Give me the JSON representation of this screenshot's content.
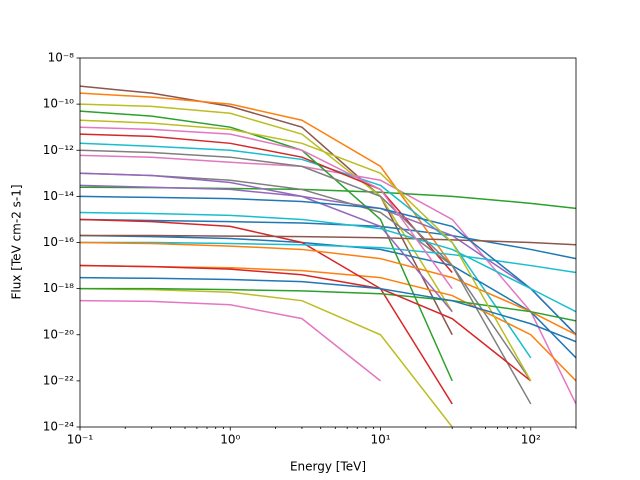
{
  "chart_data": {
    "type": "line",
    "xlabel": "Energy [TeV]",
    "ylabel": "Flux [TeV cm-2 s-1]",
    "xscale": "log",
    "yscale": "log",
    "xlim": [
      0.1,
      200
    ],
    "ylim": [
      1e-24,
      1e-08
    ],
    "xticks": [
      {
        "value": 0.1,
        "label": "10⁻¹"
      },
      {
        "value": 1,
        "label": "10⁰"
      },
      {
        "value": 10,
        "label": "10¹"
      },
      {
        "value": 100,
        "label": "10²"
      }
    ],
    "xminorticks": [
      0.2,
      0.3,
      0.4,
      0.5,
      0.6,
      0.7,
      0.8,
      0.9,
      2,
      3,
      4,
      5,
      6,
      7,
      8,
      9,
      20,
      30,
      40,
      50,
      60,
      70,
      80,
      90,
      200
    ],
    "yticks": [
      {
        "value": 1e-24,
        "label": "10⁻²⁴"
      },
      {
        "value": 1e-22,
        "label": "10⁻²²"
      },
      {
        "value": 1e-20,
        "label": "10⁻²⁰"
      },
      {
        "value": 1e-18,
        "label": "10⁻¹⁸"
      },
      {
        "value": 1e-16,
        "label": "10⁻¹⁶"
      },
      {
        "value": 1e-14,
        "label": "10⁻¹⁴"
      },
      {
        "value": 1e-12,
        "label": "10⁻¹²"
      },
      {
        "value": 1e-10,
        "label": "10⁻¹⁰"
      },
      {
        "value": 1e-08,
        "label": "10⁻⁸"
      }
    ],
    "x": [
      0.1,
      0.3,
      1,
      3,
      10,
      30,
      100,
      200
    ],
    "series": [
      {
        "color": "#8c564b",
        "values": [
          6e-10,
          3e-10,
          8e-11,
          1e-11,
          1e-14,
          1e-20,
          null,
          null
        ]
      },
      {
        "color": "#e377c2",
        "values": [
          6e-13,
          5e-13,
          3e-13,
          2e-13,
          5e-14,
          1e-15,
          1e-19,
          1e-23
        ]
      },
      {
        "color": "#2ca02c",
        "values": [
          2.5e-14,
          2.4e-14,
          2.2e-14,
          2e-14,
          1.5e-14,
          1e-14,
          5e-15,
          3e-15
        ]
      },
      {
        "color": "#1f77b4",
        "values": [
          1e-15,
          9e-16,
          8e-16,
          7e-16,
          5e-16,
          2e-16,
          5e-17,
          2e-17
        ]
      },
      {
        "color": "#ff7f0e",
        "values": [
          3e-10,
          2e-10,
          1e-10,
          2e-11,
          2e-13,
          1e-17,
          null,
          null
        ]
      },
      {
        "color": "#bcbd22",
        "values": [
          1e-10,
          8e-11,
          4e-11,
          5e-12,
          1e-14,
          1e-19,
          null,
          null
        ]
      },
      {
        "color": "#17becf",
        "values": [
          2e-12,
          1.5e-12,
          1e-12,
          4e-13,
          3e-14,
          1e-16,
          1e-21,
          null
        ]
      },
      {
        "color": "#d62728",
        "values": [
          5e-12,
          4e-12,
          2e-12,
          5e-13,
          2e-14,
          5e-18,
          null,
          null
        ]
      },
      {
        "color": "#9467bd",
        "values": [
          3e-14,
          2.5e-14,
          2e-14,
          1e-14,
          3e-15,
          2e-16,
          1e-18,
          1e-20
        ]
      },
      {
        "color": "#7f7f7f",
        "values": [
          1e-13,
          8e-14,
          5e-14,
          2e-14,
          2e-15,
          1e-17,
          1e-22,
          null
        ]
      },
      {
        "color": "#1f77b4",
        "values": [
          2e-16,
          1.8e-16,
          1.5e-16,
          1e-16,
          5e-17,
          1e-17,
          1e-19,
          1e-21
        ]
      },
      {
        "color": "#ff7f0e",
        "values": [
          1e-17,
          9e-18,
          8e-18,
          6e-18,
          3e-18,
          5e-19,
          1e-20,
          1e-22
        ]
      },
      {
        "color": "#2ca02c",
        "values": [
          5e-11,
          3e-11,
          1e-11,
          1e-12,
          1e-15,
          1e-22,
          null,
          null
        ]
      },
      {
        "color": "#d62728",
        "values": [
          1e-15,
          8e-16,
          5e-16,
          1e-16,
          1e-18,
          1e-23,
          null,
          null
        ]
      },
      {
        "color": "#bcbd22",
        "values": [
          1e-18,
          9e-19,
          7e-19,
          3e-19,
          1e-20,
          1e-24,
          null,
          null
        ]
      },
      {
        "color": "#e377c2",
        "values": [
          3e-19,
          2.8e-19,
          2e-19,
          5e-20,
          1e-22,
          null,
          null,
          null
        ]
      },
      {
        "color": "#17becf",
        "values": [
          1e-16,
          1e-16,
          9e-17,
          8e-17,
          6e-17,
          3e-17,
          1e-17,
          5e-18
        ]
      },
      {
        "color": "#8c564b",
        "values": [
          2e-16,
          2e-16,
          1.9e-16,
          1.8e-16,
          1.6e-16,
          1.3e-16,
          1e-16,
          8e-17
        ]
      },
      {
        "color": "#9467bd",
        "values": [
          1e-13,
          8e-14,
          4e-14,
          1e-14,
          5e-16,
          1e-19,
          null,
          null
        ]
      },
      {
        "color": "#1f77b4",
        "values": [
          1e-14,
          9e-15,
          8e-15,
          6e-15,
          3e-15,
          5e-16,
          1e-18,
          1e-20
        ]
      },
      {
        "color": "#ff7f0e",
        "values": [
          1e-16,
          9e-17,
          7e-17,
          5e-17,
          2e-17,
          3e-18,
          1e-19,
          1e-20
        ]
      },
      {
        "color": "#2ca02c",
        "values": [
          1e-18,
          1e-18,
          9e-19,
          8e-19,
          6e-19,
          3e-19,
          1e-19,
          4e-20
        ]
      },
      {
        "color": "#7f7f7f",
        "values": [
          1e-12,
          8e-13,
          5e-13,
          2e-13,
          1e-14,
          1e-17,
          1e-23,
          null
        ]
      },
      {
        "color": "#d62728",
        "values": [
          1e-17,
          9e-18,
          7e-18,
          4e-18,
          1e-18,
          5e-20,
          1e-22,
          null
        ]
      },
      {
        "color": "#17becf",
        "values": [
          2e-15,
          1.8e-15,
          1.5e-15,
          1e-15,
          4e-16,
          5e-17,
          1e-18,
          1e-19
        ]
      },
      {
        "color": "#bcbd22",
        "values": [
          2e-11,
          1.5e-11,
          8e-12,
          2e-12,
          1e-13,
          1e-16,
          1e-22,
          null
        ]
      },
      {
        "color": "#e377c2",
        "values": [
          1e-11,
          8e-12,
          5e-12,
          1e-12,
          2e-14,
          1e-18,
          null,
          null
        ]
      },
      {
        "color": "#1f77b4",
        "values": [
          3e-18,
          2.8e-18,
          2.5e-18,
          2e-18,
          1e-18,
          3e-19,
          3e-20,
          5e-21
        ]
      }
    ]
  }
}
